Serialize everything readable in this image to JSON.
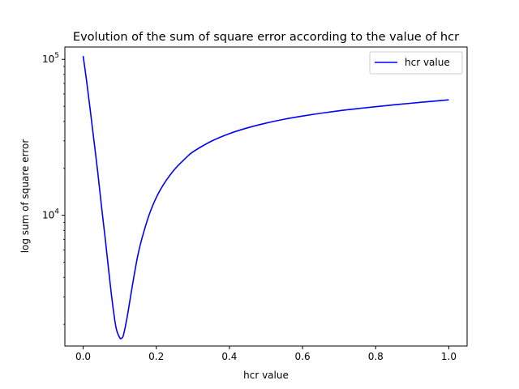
{
  "chart_data": {
    "type": "line",
    "title": "Evolution of the sum of square error according to the value of hcr",
    "xlabel": "hcr value",
    "ylabel": "log sum of square error",
    "xlim": [
      -0.05,
      1.05
    ],
    "ylim": [
      1450,
      120000
    ],
    "yscale": "log",
    "grid": false,
    "legend_position": "top-right",
    "x_ticks": [
      0.0,
      0.2,
      0.4,
      0.6,
      0.8,
      1.0
    ],
    "x_tick_labels": [
      "0.0",
      "0.2",
      "0.4",
      "0.6",
      "0.8",
      "1.0"
    ],
    "y_ticks": [
      {
        "value": 10000,
        "base": "10",
        "exp": "4"
      },
      {
        "value": 100000,
        "base": "10",
        "exp": "5"
      }
    ],
    "series": [
      {
        "name": "hcr value",
        "color": "#0000ff",
        "x": [
          0.0,
          0.01,
          0.02,
          0.03,
          0.04,
          0.05,
          0.06,
          0.07,
          0.08,
          0.09,
          0.1,
          0.105,
          0.11,
          0.12,
          0.13,
          0.14,
          0.15,
          0.16,
          0.18,
          0.2,
          0.22,
          0.25,
          0.28,
          0.3,
          0.35,
          0.4,
          0.45,
          0.5,
          0.55,
          0.6,
          0.65,
          0.7,
          0.75,
          0.8,
          0.85,
          0.9,
          0.95,
          1.0
        ],
        "y": [
          105000,
          71000,
          46000,
          29500,
          18800,
          11500,
          7200,
          4400,
          2750,
          1900,
          1640,
          1630,
          1700,
          2200,
          3050,
          4200,
          5600,
          7000,
          10000,
          13000,
          15800,
          19700,
          23200,
          25500,
          29800,
          33400,
          36400,
          39000,
          41300,
          43300,
          45100,
          46800,
          48300,
          49700,
          51100,
          52400,
          53700,
          55000
        ]
      }
    ]
  }
}
